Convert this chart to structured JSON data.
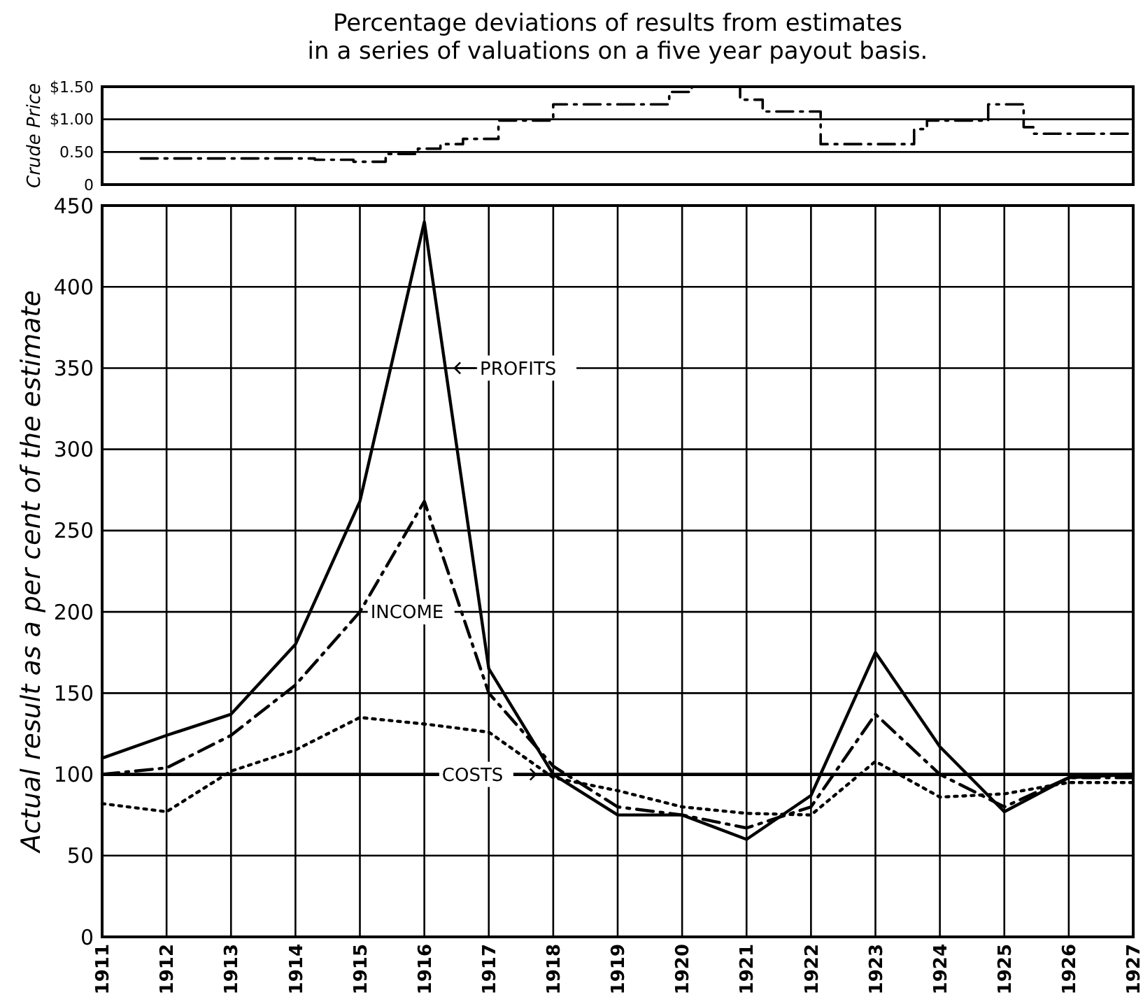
{
  "chart_data": [
    {
      "type": "step",
      "title": "Percentage deviations of results from estimates\nin a series of valuations on a five year payout basis.",
      "ylabel": "Crude Price",
      "xlim": [
        1911,
        1927
      ],
      "ylim": [
        0,
        1.5
      ],
      "yticks": [
        0,
        {
          "value": 0.5,
          "label": "0.50"
        },
        {
          "value": 1,
          "label": "$1.00"
        },
        {
          "value": 1.5,
          "label": "$1.50"
        }
      ],
      "tick_labels": "y",
      "grid": "y",
      "line_style": "dashed",
      "series": [
        {
          "color": "#000000",
          "x": [
            1911.6,
            1914.3,
            1914.9,
            1915.4,
            1915.9,
            1916.25,
            1916.6,
            1917.15,
            1918.0,
            1919.8,
            1920.15,
            1920.9,
            1921.25,
            1922.15,
            1923.6,
            1923.8,
            1924.75,
            1925.3,
            1925.45,
            1927
          ],
          "values": [
            0.4,
            0.38,
            0.35,
            0.47,
            0.55,
            0.62,
            0.7,
            0.98,
            1.23,
            1.42,
            1.5,
            1.3,
            1.12,
            0.62,
            0.85,
            0.98,
            1.23,
            0.88,
            0.78,
            0.78
          ]
        }
      ]
    },
    {
      "type": "line",
      "ylabel": "Actual result as a per cent of the estimate",
      "x": [
        1911,
        1912,
        1913,
        1914,
        1915,
        1916,
        1917,
        1918,
        1919,
        1920,
        1921,
        1922,
        1923,
        1924,
        1925,
        1926,
        1927
      ],
      "xlim": [
        1911,
        1927
      ],
      "xticks": [
        1911,
        1912,
        1913,
        1914,
        1915,
        1916,
        1917,
        1918,
        1919,
        1920,
        1921,
        1922,
        1923,
        1924,
        1925,
        1926,
        1927
      ],
      "ylim": [
        0,
        450
      ],
      "yticks": [
        0,
        50,
        100,
        150,
        200,
        250,
        300,
        350,
        400,
        450
      ],
      "grid": true,
      "ref_lines": [
        {
          "axis": "y",
          "value": 100
        }
      ],
      "series": [
        {
          "name": "PROFITS",
          "color": "#000000",
          "line_style": "solid",
          "values": [
            110,
            124,
            137,
            180,
            268,
            440,
            165,
            100,
            75,
            75,
            60,
            87,
            175,
            117,
            77,
            98,
            100
          ]
        },
        {
          "name": "INCOME",
          "color": "#000000",
          "line_style": "dashed",
          "values": [
            100,
            104,
            124,
            155,
            200,
            268,
            150,
            105,
            80,
            75,
            67,
            80,
            137,
            100,
            80,
            98,
            98
          ]
        },
        {
          "name": "COSTS",
          "color": "#000000",
          "line_style": "dotted",
          "values": [
            82,
            77,
            102,
            115,
            135,
            131,
            126,
            98,
            90,
            80,
            76,
            75,
            108,
            86,
            88,
            95,
            95
          ]
        }
      ]
    }
  ]
}
